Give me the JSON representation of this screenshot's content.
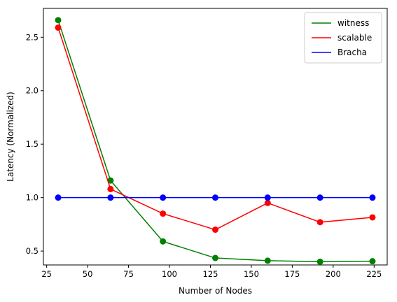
{
  "chart_data": {
    "type": "line",
    "title": "",
    "xlabel": "Number of Nodes",
    "ylabel": "Latency (Normalized)",
    "x": [
      32,
      64,
      96,
      128,
      160,
      192,
      224
    ],
    "xlim": [
      23,
      233
    ],
    "ylim": [
      0.37,
      2.77
    ],
    "xticks": [
      25,
      50,
      75,
      100,
      125,
      150,
      175,
      200,
      225
    ],
    "yticks": [
      0.5,
      1.0,
      1.5,
      2.0,
      2.5
    ],
    "grid": false,
    "legend_position": "top-right",
    "series": [
      {
        "name": "witness",
        "color": "#008000",
        "marker": "circle",
        "values": [
          2.66,
          1.16,
          0.59,
          0.435,
          0.41,
          0.4,
          0.405
        ]
      },
      {
        "name": "scalable",
        "color": "#ff0000",
        "marker": "circle",
        "values": [
          2.59,
          1.08,
          0.85,
          0.7,
          0.95,
          0.77,
          0.815
        ]
      },
      {
        "name": "Bracha",
        "color": "#0000ff",
        "marker": "circle",
        "values": [
          1.0,
          1.0,
          1.0,
          1.0,
          1.0,
          1.0,
          1.0
        ]
      }
    ]
  }
}
